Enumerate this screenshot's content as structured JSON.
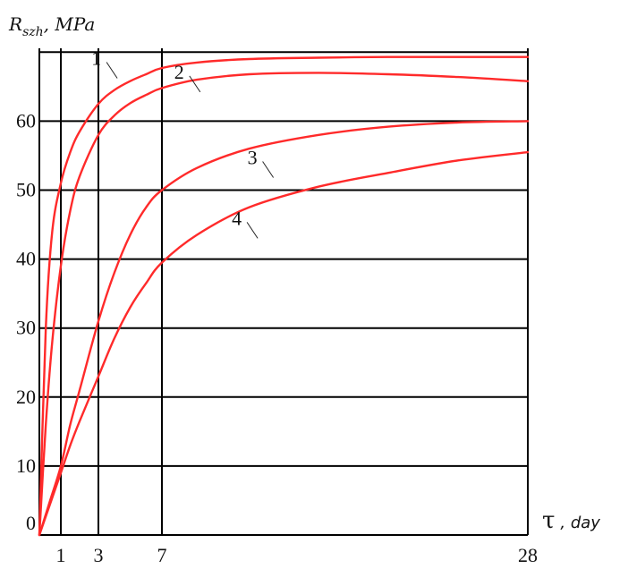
{
  "chart_data": {
    "type": "line",
    "title": "",
    "ylabel": {
      "main": "R",
      "sub": "szh",
      "unit": ", MPa"
    },
    "xlabel": {
      "symbol": "τ",
      "unit": ", day"
    },
    "xlim": [
      0,
      28
    ],
    "ylim": [
      0,
      70
    ],
    "y_ticks": [
      0,
      10,
      20,
      30,
      40,
      50,
      60
    ],
    "x_ticks": [
      1,
      3,
      7,
      28
    ],
    "x_gridlines": [
      0,
      1,
      3,
      7,
      28
    ],
    "y_gridlines": [
      0,
      10,
      20,
      30,
      40,
      50,
      60,
      70
    ],
    "grid": true,
    "legend": "none",
    "line_color": "#ff2a2a",
    "series": [
      {
        "label": "1",
        "x": [
          0,
          0.3,
          0.6,
          1,
          1.5,
          2,
          3,
          4,
          5,
          6,
          7,
          9,
          12,
          16,
          20,
          24,
          28
        ],
        "y": [
          0,
          30,
          44,
          51,
          55.5,
          58.5,
          62.5,
          64.5,
          65.8,
          66.8,
          67.7,
          68.5,
          69.0,
          69.2,
          69.3,
          69.3,
          69.3
        ]
      },
      {
        "label": "2",
        "x": [
          0,
          0.3,
          0.6,
          1,
          1.5,
          2,
          3,
          4,
          5,
          6,
          7,
          9,
          12,
          16,
          20,
          24,
          28
        ],
        "y": [
          0,
          16,
          28,
          39,
          47,
          52,
          58,
          60.8,
          62.6,
          63.8,
          64.8,
          66.0,
          66.8,
          67.0,
          66.8,
          66.4,
          65.8
        ]
      },
      {
        "label": "3",
        "x": [
          0,
          0.5,
          1,
          1.5,
          2,
          3,
          4,
          5,
          6,
          7,
          9,
          12,
          16,
          20,
          24,
          28
        ],
        "y": [
          0,
          5,
          10,
          16,
          21,
          31,
          38,
          43.5,
          47.5,
          50,
          53.2,
          56.0,
          58.0,
          59.2,
          59.8,
          60.0
        ]
      },
      {
        "label": "4",
        "x": [
          0,
          0.5,
          1,
          1.5,
          2,
          3,
          4,
          5,
          6,
          7,
          9,
          12,
          16,
          20,
          24,
          28
        ],
        "y": [
          0,
          4.5,
          9,
          13,
          16.5,
          23,
          28.5,
          33,
          36.5,
          39.5,
          43.5,
          47.5,
          50.5,
          52.5,
          54.3,
          55.5
        ]
      }
    ],
    "label_points": [
      {
        "label": "1",
        "x": 4.3,
        "y": 66.6
      },
      {
        "label": "2",
        "x": 9.3,
        "y": 64.6
      },
      {
        "label": "3",
        "x": 13.5,
        "y": 52.2
      },
      {
        "label": "4",
        "x": 12.6,
        "y": 43.4
      }
    ]
  }
}
